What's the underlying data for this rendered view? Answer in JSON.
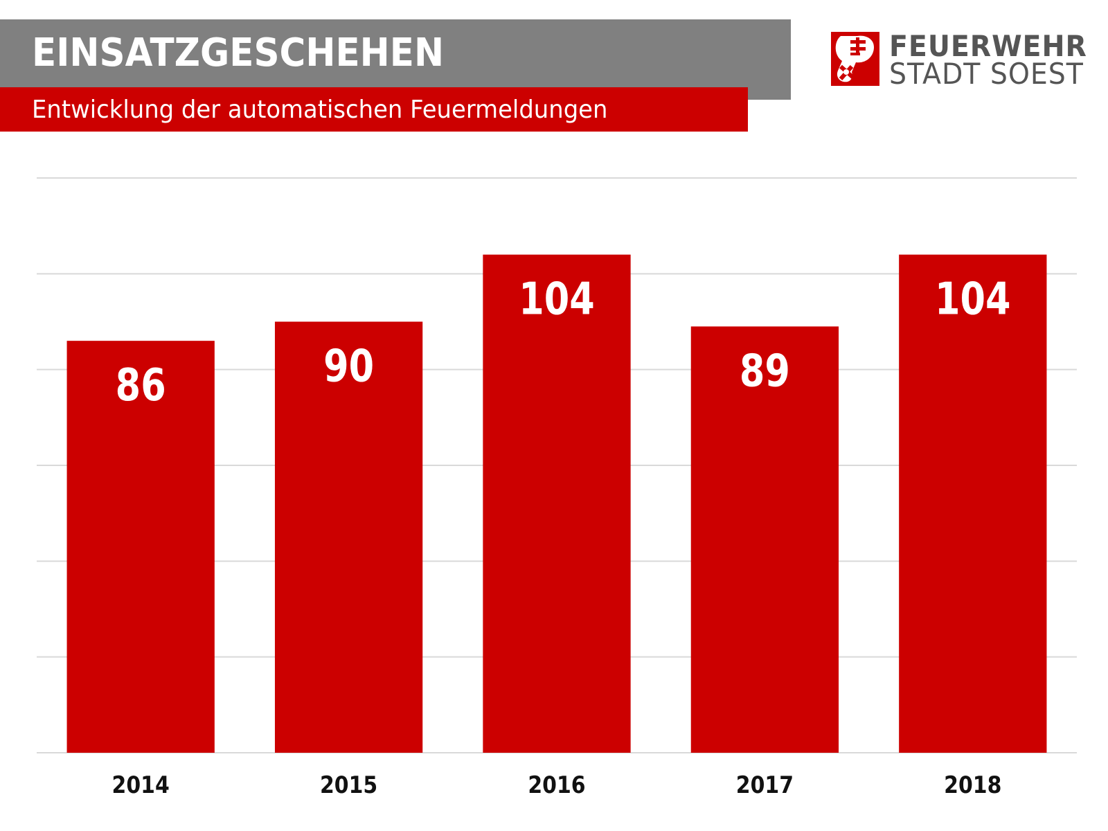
{
  "header": {
    "title": "EINSATZGESCHEHEN",
    "subtitle": "Entwicklung der automatischen Feuermeldungen"
  },
  "logo": {
    "icon": "soest-key-crest-icon",
    "line1": "FEUERWEHR",
    "line2": "STADT SOEST"
  },
  "colors": {
    "title_band": "#808080",
    "accent": "#cc0000",
    "bar": "#cc0000",
    "gridline": "#d9d9d9",
    "logo_text": "#555555"
  },
  "chart_data": {
    "type": "bar",
    "title": "Entwicklung der automatischen Feuermeldungen",
    "categories": [
      "2014",
      "2015",
      "2016",
      "2017",
      "2018"
    ],
    "values": [
      86,
      90,
      104,
      89,
      104
    ],
    "data_labels": [
      "86",
      "90",
      "104",
      "89",
      "104"
    ],
    "xlabel": "",
    "ylabel": "",
    "ylim": [
      0,
      120
    ],
    "gridline_step": 20,
    "grid": true,
    "legend": "none",
    "y_tick_labels_visible": false
  }
}
